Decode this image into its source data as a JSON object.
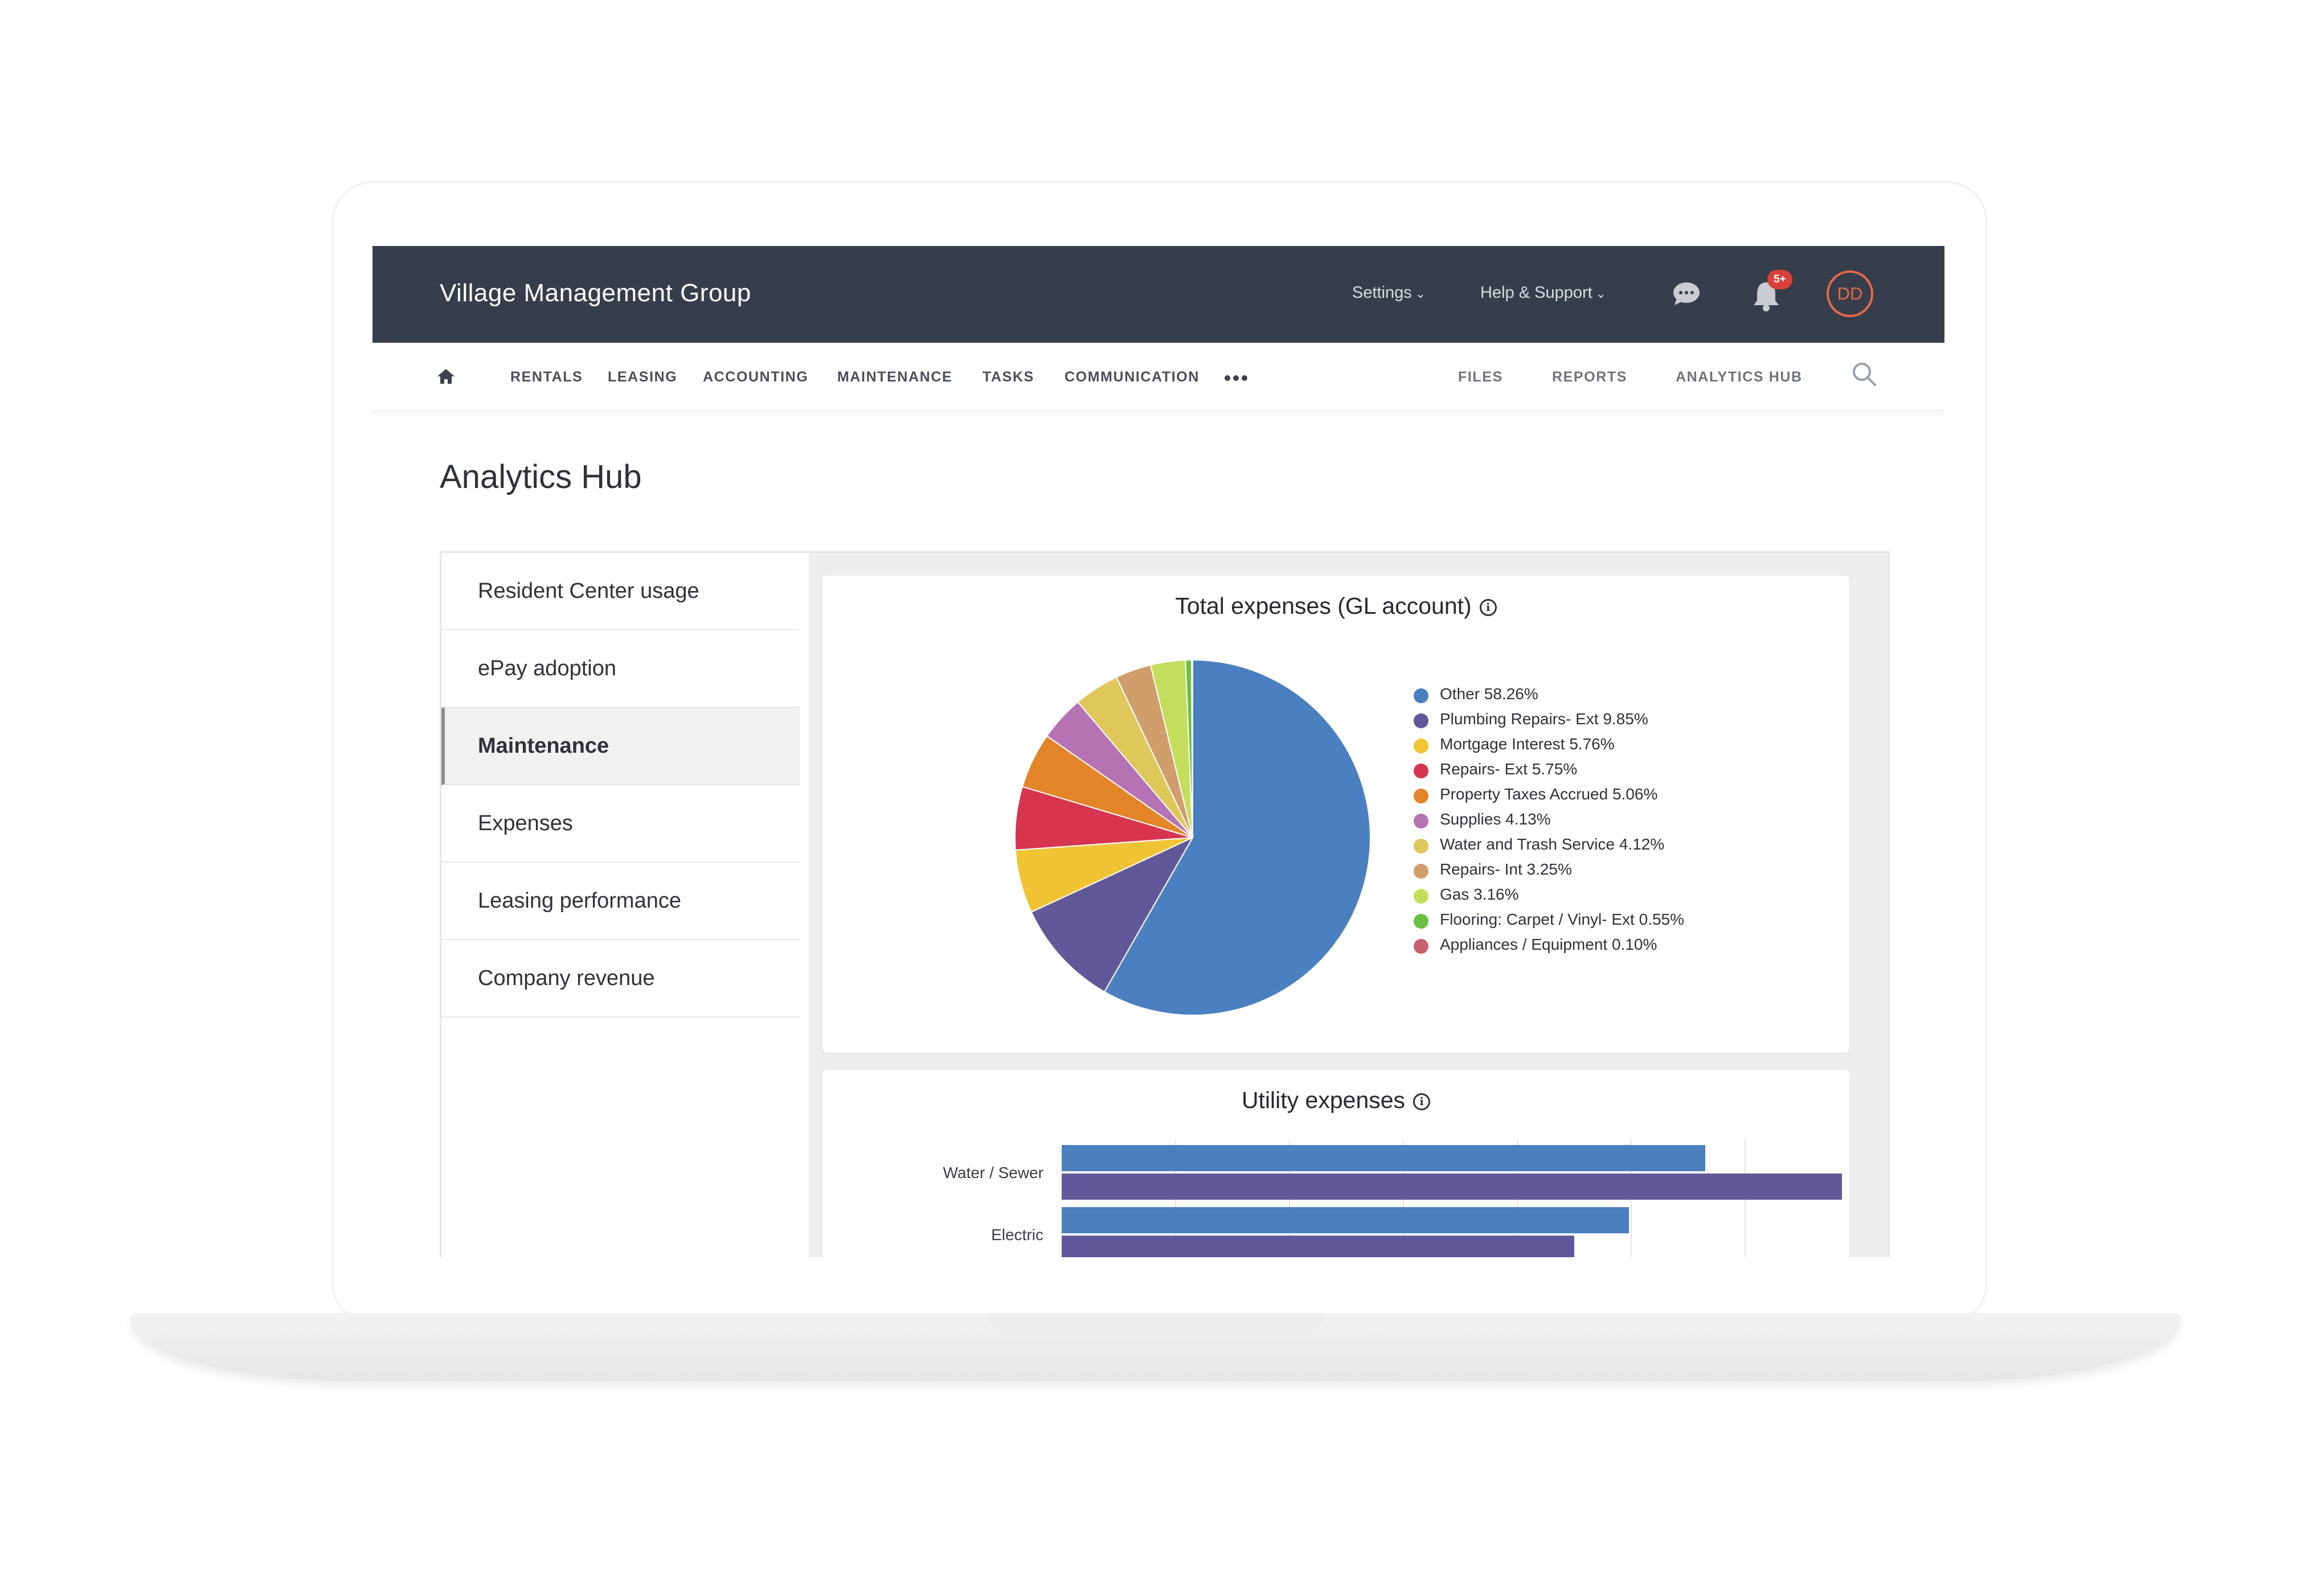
{
  "header": {
    "company": "Village Management Group",
    "settings": "Settings",
    "help": "Help & Support",
    "notification_badge": "5+",
    "avatar_initials": "DD"
  },
  "nav": {
    "items": [
      "RENTALS",
      "LEASING",
      "ACCOUNTING",
      "MAINTENANCE",
      "TASKS",
      "COMMUNICATION"
    ],
    "right_items": [
      "FILES",
      "REPORTS",
      "ANALYTICS HUB"
    ]
  },
  "page_title": "Analytics Hub",
  "sidebar": {
    "items": [
      "Resident Center usage",
      "ePay adoption",
      "Maintenance",
      "Expenses",
      "Leasing performance",
      "Company revenue"
    ],
    "active": "Maintenance"
  },
  "chart_data": [
    {
      "type": "pie",
      "title": "Total expenses (GL account)",
      "slices": [
        {
          "label": "Other 58.26%",
          "value": 58.26,
          "color": "#4a80c0"
        },
        {
          "label": "Plumbing Repairs- Ext 9.85%",
          "value": 9.85,
          "color": "#625899"
        },
        {
          "label": "Mortgage Interest 5.76%",
          "value": 5.76,
          "color": "#f0c434"
        },
        {
          "label": "Repairs- Ext 5.75%",
          "value": 5.75,
          "color": "#d7354f"
        },
        {
          "label": "Property Taxes Accrued 5.06%",
          "value": 5.06,
          "color": "#e5852a"
        },
        {
          "label": "Supplies 4.13%",
          "value": 4.13,
          "color": "#b673b3"
        },
        {
          "label": "Water and Trash Service 4.12%",
          "value": 4.12,
          "color": "#e0c75a"
        },
        {
          "label": "Repairs- Int 3.25%",
          "value": 3.25,
          "color": "#d09e6a"
        },
        {
          "label": "Gas 3.16%",
          "value": 3.16,
          "color": "#c3de5c"
        },
        {
          "label": "Flooring: Carpet / Vinyl- Ext 0.55%",
          "value": 0.55,
          "color": "#6bc041"
        },
        {
          "label": "Appliances / Equipment 0.10%",
          "value": 0.1,
          "color": "#c95f6e"
        }
      ]
    },
    {
      "type": "bar",
      "orientation": "horizontal",
      "title": "Utility expenses",
      "categories": [
        "Water / Sewer",
        "Electric"
      ],
      "series": [
        {
          "values": [
            5.65,
            4.98
          ],
          "color": "#4a80c0"
        },
        {
          "values": [
            6.85,
            4.5
          ],
          "color": "#625899"
        }
      ],
      "xlim": [
        0,
        7
      ],
      "grid": true
    }
  ]
}
